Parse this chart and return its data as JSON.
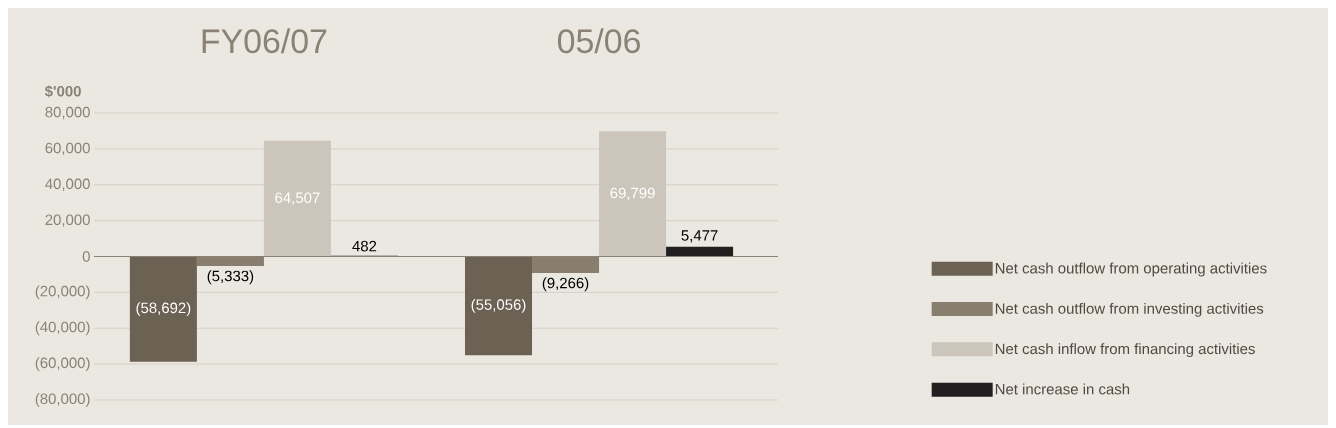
{
  "chart_data": {
    "type": "bar",
    "categories": [
      "FY06/07",
      "05/06"
    ],
    "ylabel": "$'000",
    "series": [
      {
        "name": "Net cash outflow from operating activities",
        "color": "#6c6254",
        "values": [
          -58692,
          -55056
        ],
        "value_labels": [
          "(58,692)",
          "(55,056)"
        ]
      },
      {
        "name": "Net cash outflow from investing activities",
        "color": "#877e6d",
        "values": [
          -5333,
          -9266
        ],
        "value_labels": [
          "(5,333)",
          "(9,266)"
        ]
      },
      {
        "name": "Net cash inflow from financing activities",
        "color": "#ccc5bb",
        "values": [
          64507,
          69799
        ],
        "value_labels": [
          "64,507",
          "69,799"
        ]
      },
      {
        "name": "Net increase in cash",
        "color": "#231f20",
        "values": [
          482,
          5477
        ],
        "value_labels": [
          "482",
          "5,477"
        ]
      }
    ],
    "ylim": [
      -80000,
      80000
    ],
    "yticks": [
      {
        "value": 80000,
        "label": "80,000"
      },
      {
        "value": 60000,
        "label": "60,000"
      },
      {
        "value": 40000,
        "label": "40,000"
      },
      {
        "value": 20000,
        "label": "20,000"
      },
      0,
      {
        "value": -20000,
        "label": "(20,000)"
      },
      {
        "value": -40000,
        "label": "(40,000)"
      },
      {
        "value": -60000,
        "label": "(60,000)"
      },
      {
        "value": -80000,
        "label": "(80,000)"
      }
    ],
    "grid": "y",
    "legend": "right"
  }
}
